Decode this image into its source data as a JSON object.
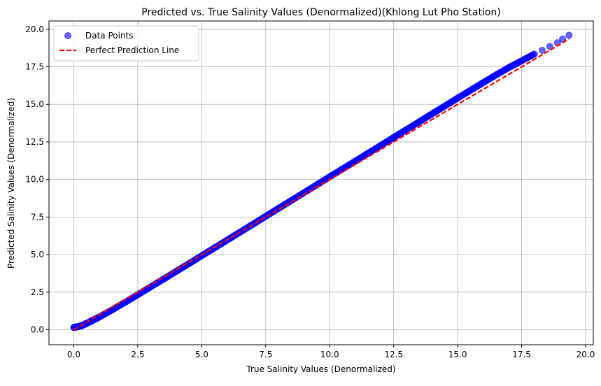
{
  "chart_data": {
    "type": "scatter",
    "title": "Predicted vs. True Salinity Values (Denormalized)(Khlong Lut Pho Station)",
    "xlabel": "True Salinity Values (Denormalized)",
    "ylabel": "Predicted Salinity Values (Denormalized)",
    "xlim": [
      -0.97,
      20.3
    ],
    "ylim": [
      -1.0,
      20.55
    ],
    "xticks": [
      "0.0",
      "2.5",
      "5.0",
      "7.5",
      "10.0",
      "12.5",
      "15.0",
      "17.5",
      "20.0"
    ],
    "yticks": [
      "0.0",
      "2.5",
      "5.0",
      "7.5",
      "10.0",
      "12.5",
      "15.0",
      "17.5",
      "20.0"
    ],
    "grid": true,
    "legend_position": "top-left",
    "series": [
      {
        "name": "Data Points",
        "kind": "scatter",
        "color": "#0000ff",
        "opacity": 0.6,
        "points": [
          [
            0.0,
            0.15
          ],
          [
            0.1,
            0.18
          ],
          [
            0.2,
            0.22
          ],
          [
            0.35,
            0.3
          ],
          [
            0.5,
            0.42
          ],
          [
            0.75,
            0.63
          ],
          [
            1.0,
            0.85
          ],
          [
            1.5,
            1.32
          ],
          [
            2.0,
            1.82
          ],
          [
            2.5,
            2.33
          ],
          [
            3.0,
            2.85
          ],
          [
            3.5,
            3.36
          ],
          [
            4.0,
            3.88
          ],
          [
            4.5,
            4.4
          ],
          [
            5.0,
            4.93
          ],
          [
            5.5,
            5.45
          ],
          [
            6.0,
            5.97
          ],
          [
            6.5,
            6.5
          ],
          [
            7.0,
            7.02
          ],
          [
            7.5,
            7.55
          ],
          [
            8.0,
            8.08
          ],
          [
            8.5,
            8.6
          ],
          [
            9.0,
            9.13
          ],
          [
            9.5,
            9.65
          ],
          [
            10.0,
            10.18
          ],
          [
            10.5,
            10.7
          ],
          [
            11.0,
            11.22
          ],
          [
            11.5,
            11.75
          ],
          [
            12.0,
            12.27
          ],
          [
            12.5,
            12.8
          ],
          [
            13.0,
            13.32
          ],
          [
            13.5,
            13.84
          ],
          [
            14.0,
            14.37
          ],
          [
            14.5,
            14.89
          ],
          [
            15.0,
            15.42
          ],
          [
            15.5,
            15.93
          ],
          [
            16.0,
            16.45
          ],
          [
            16.5,
            16.96
          ],
          [
            17.0,
            17.45
          ],
          [
            17.5,
            17.9
          ],
          [
            18.0,
            18.35
          ],
          [
            18.3,
            18.6
          ],
          [
            18.6,
            18.85
          ],
          [
            18.9,
            19.1
          ],
          [
            19.1,
            19.35
          ],
          [
            19.35,
            19.6
          ]
        ]
      },
      {
        "name": "Perfect Prediction Line",
        "kind": "line",
        "color": "#ff0000",
        "style": "dashed",
        "points": [
          [
            0.0,
            0.0
          ],
          [
            19.35,
            19.35
          ]
        ]
      }
    ]
  }
}
